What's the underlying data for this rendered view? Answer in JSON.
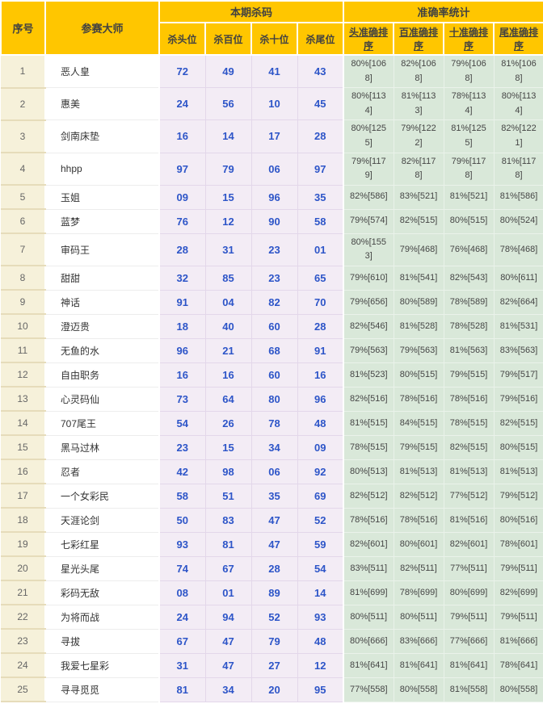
{
  "header": {
    "col_seq": "序号",
    "col_master": "参赛大师",
    "group_kill": "本期杀码",
    "group_accuracy": "准确率统计",
    "kill_cols": [
      "杀头位",
      "杀百位",
      "杀十位",
      "杀尾位"
    ],
    "accuracy_cols": [
      "头准确排序",
      "百准确排序",
      "十准确排序",
      "尾准确排序"
    ]
  },
  "colors": {
    "header_bg": "#ffc600",
    "kill_text": "#2d55c8",
    "kill_bg": "#f3ecf5",
    "acc_bg": "#d9e8d9",
    "seq_bg": "#f6f1da"
  },
  "rows": [
    {
      "seq": "1",
      "master": "恶人皇",
      "kills": [
        "72",
        "49",
        "41",
        "43"
      ],
      "accuracy": [
        "80%[1068]",
        "82%[1068]",
        "79%[1068]",
        "81%[1068]"
      ]
    },
    {
      "seq": "2",
      "master": "惠美",
      "kills": [
        "24",
        "56",
        "10",
        "45"
      ],
      "accuracy": [
        "80%[1134]",
        "81%[1133]",
        "78%[1134]",
        "80%[1134]"
      ]
    },
    {
      "seq": "3",
      "master": "剑南床垫",
      "kills": [
        "16",
        "14",
        "17",
        "28"
      ],
      "accuracy": [
        "80%[1255]",
        "79%[1222]",
        "81%[1255]",
        "82%[1221]"
      ]
    },
    {
      "seq": "4",
      "master": "hhpp",
      "kills": [
        "97",
        "79",
        "06",
        "97"
      ],
      "accuracy": [
        "79%[1179]",
        "82%[1178]",
        "79%[1178]",
        "81%[1178]"
      ]
    },
    {
      "seq": "5",
      "master": "玉姐",
      "kills": [
        "09",
        "15",
        "96",
        "35"
      ],
      "accuracy": [
        "82%[586]",
        "83%[521]",
        "81%[521]",
        "81%[586]"
      ]
    },
    {
      "seq": "6",
      "master": "蓝梦",
      "kills": [
        "76",
        "12",
        "90",
        "58"
      ],
      "accuracy": [
        "79%[574]",
        "82%[515]",
        "80%[515]",
        "80%[524]"
      ]
    },
    {
      "seq": "7",
      "master": "审码王",
      "kills": [
        "28",
        "31",
        "23",
        "01"
      ],
      "accuracy": [
        "80%[1553]",
        "79%[468]",
        "76%[468]",
        "78%[468]"
      ]
    },
    {
      "seq": "8",
      "master": "甜甜",
      "kills": [
        "32",
        "85",
        "23",
        "65"
      ],
      "accuracy": [
        "79%[610]",
        "81%[541]",
        "82%[543]",
        "80%[611]"
      ]
    },
    {
      "seq": "9",
      "master": "神话",
      "kills": [
        "91",
        "04",
        "82",
        "70"
      ],
      "accuracy": [
        "79%[656]",
        "80%[589]",
        "78%[589]",
        "82%[664]"
      ]
    },
    {
      "seq": "10",
      "master": "澄迈贵",
      "kills": [
        "18",
        "40",
        "60",
        "28"
      ],
      "accuracy": [
        "82%[546]",
        "81%[528]",
        "78%[528]",
        "81%[531]"
      ]
    },
    {
      "seq": "11",
      "master": "无鱼的水",
      "kills": [
        "96",
        "21",
        "68",
        "91"
      ],
      "accuracy": [
        "79%[563]",
        "79%[563]",
        "81%[563]",
        "83%[563]"
      ]
    },
    {
      "seq": "12",
      "master": "自由职务",
      "kills": [
        "16",
        "16",
        "60",
        "16"
      ],
      "accuracy": [
        "81%[523]",
        "80%[515]",
        "79%[515]",
        "79%[517]"
      ]
    },
    {
      "seq": "13",
      "master": "心灵码仙",
      "kills": [
        "73",
        "64",
        "80",
        "96"
      ],
      "accuracy": [
        "82%[516]",
        "78%[516]",
        "78%[516]",
        "79%[516]"
      ]
    },
    {
      "seq": "14",
      "master": "707尾王",
      "kills": [
        "54",
        "26",
        "78",
        "48"
      ],
      "accuracy": [
        "81%[515]",
        "84%[515]",
        "78%[515]",
        "82%[515]"
      ]
    },
    {
      "seq": "15",
      "master": "黑马过林",
      "kills": [
        "23",
        "15",
        "34",
        "09"
      ],
      "accuracy": [
        "78%[515]",
        "79%[515]",
        "82%[515]",
        "80%[515]"
      ]
    },
    {
      "seq": "16",
      "master": "忍者",
      "kills": [
        "42",
        "98",
        "06",
        "92"
      ],
      "accuracy": [
        "80%[513]",
        "81%[513]",
        "81%[513]",
        "81%[513]"
      ]
    },
    {
      "seq": "17",
      "master": "一个女彩民",
      "kills": [
        "58",
        "51",
        "35",
        "69"
      ],
      "accuracy": [
        "82%[512]",
        "82%[512]",
        "77%[512]",
        "79%[512]"
      ]
    },
    {
      "seq": "18",
      "master": "天涯论剑",
      "kills": [
        "50",
        "83",
        "47",
        "52"
      ],
      "accuracy": [
        "78%[516]",
        "78%[516]",
        "81%[516]",
        "80%[516]"
      ]
    },
    {
      "seq": "19",
      "master": "七彩红星",
      "kills": [
        "93",
        "81",
        "47",
        "59"
      ],
      "accuracy": [
        "82%[601]",
        "80%[601]",
        "82%[601]",
        "78%[601]"
      ]
    },
    {
      "seq": "20",
      "master": "星光头尾",
      "kills": [
        "74",
        "67",
        "28",
        "54"
      ],
      "accuracy": [
        "83%[511]",
        "82%[511]",
        "77%[511]",
        "79%[511]"
      ]
    },
    {
      "seq": "21",
      "master": "彩码无敌",
      "kills": [
        "08",
        "01",
        "89",
        "14"
      ],
      "accuracy": [
        "81%[699]",
        "78%[699]",
        "80%[699]",
        "82%[699]"
      ]
    },
    {
      "seq": "22",
      "master": "为将而战",
      "kills": [
        "24",
        "94",
        "52",
        "93"
      ],
      "accuracy": [
        "80%[511]",
        "80%[511]",
        "79%[511]",
        "79%[511]"
      ]
    },
    {
      "seq": "23",
      "master": "寻拔",
      "kills": [
        "67",
        "47",
        "79",
        "48"
      ],
      "accuracy": [
        "80%[666]",
        "83%[666]",
        "77%[666]",
        "81%[666]"
      ]
    },
    {
      "seq": "24",
      "master": "我爱七星彩",
      "kills": [
        "31",
        "47",
        "27",
        "12"
      ],
      "accuracy": [
        "81%[641]",
        "81%[641]",
        "81%[641]",
        "78%[641]"
      ]
    },
    {
      "seq": "25",
      "master": "寻寻觅觅",
      "kills": [
        "81",
        "34",
        "20",
        "95"
      ],
      "accuracy": [
        "77%[558]",
        "80%[558]",
        "81%[558]",
        "80%[558]"
      ]
    }
  ]
}
